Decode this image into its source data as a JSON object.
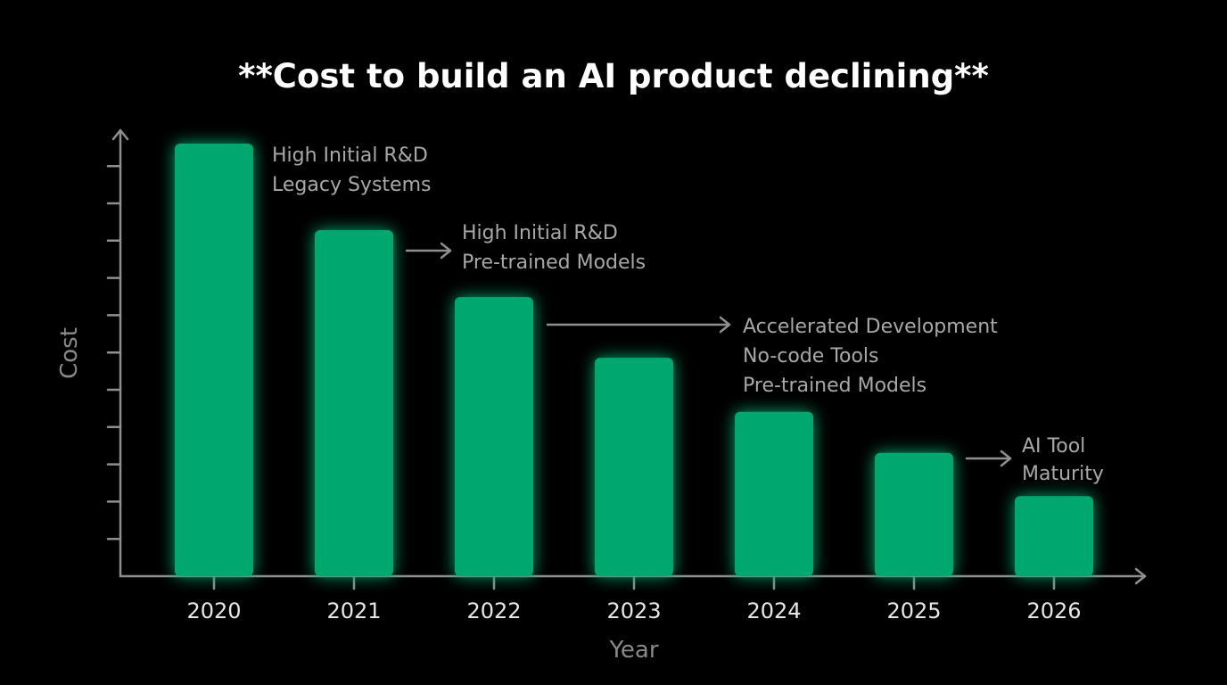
{
  "colors": {
    "background": "#000000",
    "bar": "#00a870",
    "bar_glow": "#19e68f",
    "axis": "#8f8f8f",
    "title": "#ffffff",
    "tick_label": "#e6e6e6",
    "annotation": "#a8a8a8"
  },
  "chart_data": {
    "type": "bar",
    "title": "**Cost to build an AI product declining**",
    "xlabel": "Year",
    "ylabel": "Cost",
    "categories": [
      "2020",
      "2021",
      "2022",
      "2023",
      "2024",
      "2025",
      "2026"
    ],
    "values": [
      100,
      80,
      64.5,
      50.5,
      38,
      28.5,
      18.5
    ],
    "ylim": [
      0,
      100
    ],
    "y_tick_labels_shown": false,
    "grid": false,
    "legend": "none",
    "annotations": [
      {
        "bar_index": 0,
        "arrow": false,
        "lines": [
          "High Initial R&D",
          "Legacy Systems"
        ]
      },
      {
        "bar_index": 1,
        "arrow": true,
        "lines": [
          "High Initial R&D",
          "Pre-trained Models"
        ]
      },
      {
        "bar_index": 2,
        "arrow": true,
        "lines": [
          "Accelerated Development",
          "No-code Tools",
          "Pre-trained Models"
        ]
      },
      {
        "bar_index": 5,
        "arrow": true,
        "lines": [
          "AI Tool",
          "Maturity"
        ]
      }
    ]
  }
}
